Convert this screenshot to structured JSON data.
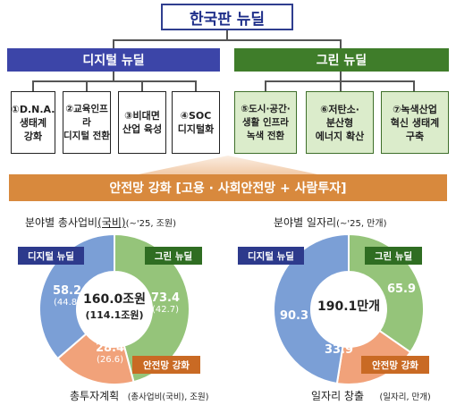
{
  "title": "한국판 뉴딜",
  "digital": {
    "label": "디지털 뉴딜",
    "items": [
      "①D.N.A.\n생태계\n강화",
      "②교육인프라\n디지털 전환",
      "③비대면\n산업 육성",
      "④SOC\n디지털화"
    ]
  },
  "green": {
    "label": "그린 뉴딜",
    "items": [
      "⑤도시·공간·\n생활 인프라\n녹색 전환",
      "⑥저탄소·\n분산형\n에너지 확산",
      "⑦녹색산업\n혁신 생태계\n구축"
    ]
  },
  "safety_bar": "안전망 강화 [고용 · 사회안전망 + 사람투자]",
  "left_chart": {
    "title_main": "분야별 총사업비",
    "title_paren": "(국비)",
    "title_sub": "(~'25, 조원)",
    "center_main": "160.0조원",
    "center_sub": "(114.1조원)",
    "labels": {
      "digital": "디지털 뉴딜",
      "green": "그린 뉴딜",
      "safety": "안전망 강화"
    },
    "footer_main": "총투자계획",
    "footer_sub": "(총사업비(국비), 조원)"
  },
  "right_chart": {
    "title_main": "분야별 일자리",
    "title_sub": "(~'25, 만개)",
    "center_main": "190.1만개",
    "labels": {
      "digital": "디지털 뉴딜",
      "green": "그린 뉴딜",
      "safety": "안전망 강화"
    },
    "footer_main": "일자리 창출",
    "footer_sub": "(일자리, 만개)"
  },
  "chart_data": [
    {
      "type": "pie",
      "categories": [
        "디지털 뉴딜",
        "그린 뉴딜",
        "안전망 강화"
      ],
      "values": [
        58.2,
        73.4,
        28.4
      ],
      "secondary_values": [
        44.8,
        42.7,
        26.6
      ],
      "value_labels": [
        "58.2",
        "73.4",
        "28.4"
      ],
      "secondary_labels": [
        "(44.8)",
        "(42.7)",
        "(26.6)"
      ],
      "colors": [
        "#7b9fd6",
        "#95c47a",
        "#f1a27a"
      ]
    },
    {
      "type": "pie",
      "categories": [
        "디지털 뉴딜",
        "그린 뉴딜",
        "안전망 강화"
      ],
      "values": [
        90.3,
        65.9,
        33.9
      ],
      "value_labels": [
        "90.3",
        "65.9",
        "33.9"
      ],
      "colors": [
        "#7b9fd6",
        "#95c47a",
        "#f1a27a"
      ]
    }
  ]
}
